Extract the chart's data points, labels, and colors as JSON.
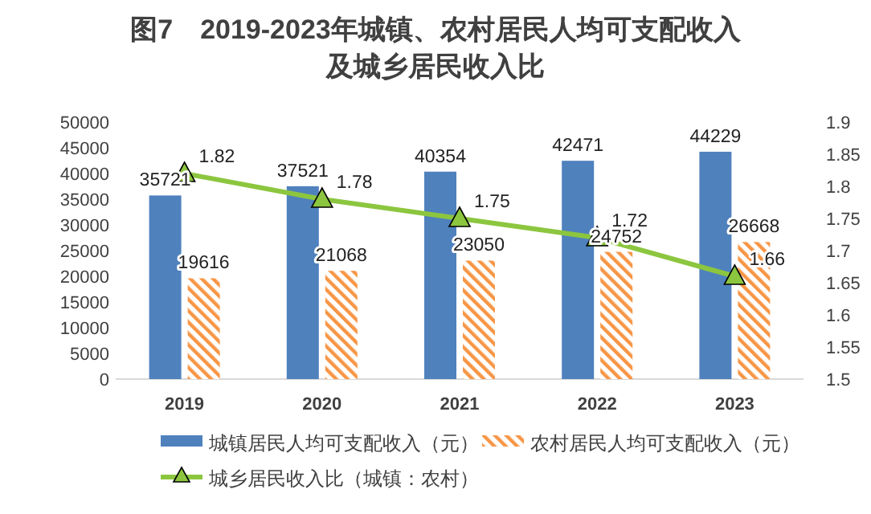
{
  "chart_data": {
    "type": "bar",
    "title": "图7　2019-2023年城镇、农村居民人均可支配收入",
    "subtitle": "及城乡居民收入比",
    "categories": [
      "2019",
      "2020",
      "2021",
      "2022",
      "2023"
    ],
    "series": [
      {
        "name": "城镇居民人均可支配收入（元）",
        "color": "#4f81bd",
        "values": [
          35721,
          37521,
          40354,
          42471,
          44229
        ]
      },
      {
        "name": "农村居民人均可支配收入（元）",
        "color": "#f79646",
        "values": [
          19616,
          21068,
          23050,
          24752,
          26668
        ]
      },
      {
        "name": "城乡居民收入比（城镇：农村）",
        "type": "line",
        "axis": "y2",
        "color": "#8cc63f",
        "marker": "triangle",
        "values": [
          1.82,
          1.78,
          1.75,
          1.72,
          1.66
        ]
      }
    ],
    "ylim": [
      0,
      50000
    ],
    "yticks": [
      0,
      5000,
      10000,
      15000,
      20000,
      25000,
      30000,
      35000,
      40000,
      45000,
      50000
    ],
    "y2lim": [
      1.5,
      1.9
    ],
    "y2ticks": [
      1.5,
      1.55,
      1.6,
      1.65,
      1.7,
      1.75,
      1.8,
      1.85,
      1.9
    ],
    "data_labels": true,
    "legend": "bottom",
    "grid": false
  }
}
